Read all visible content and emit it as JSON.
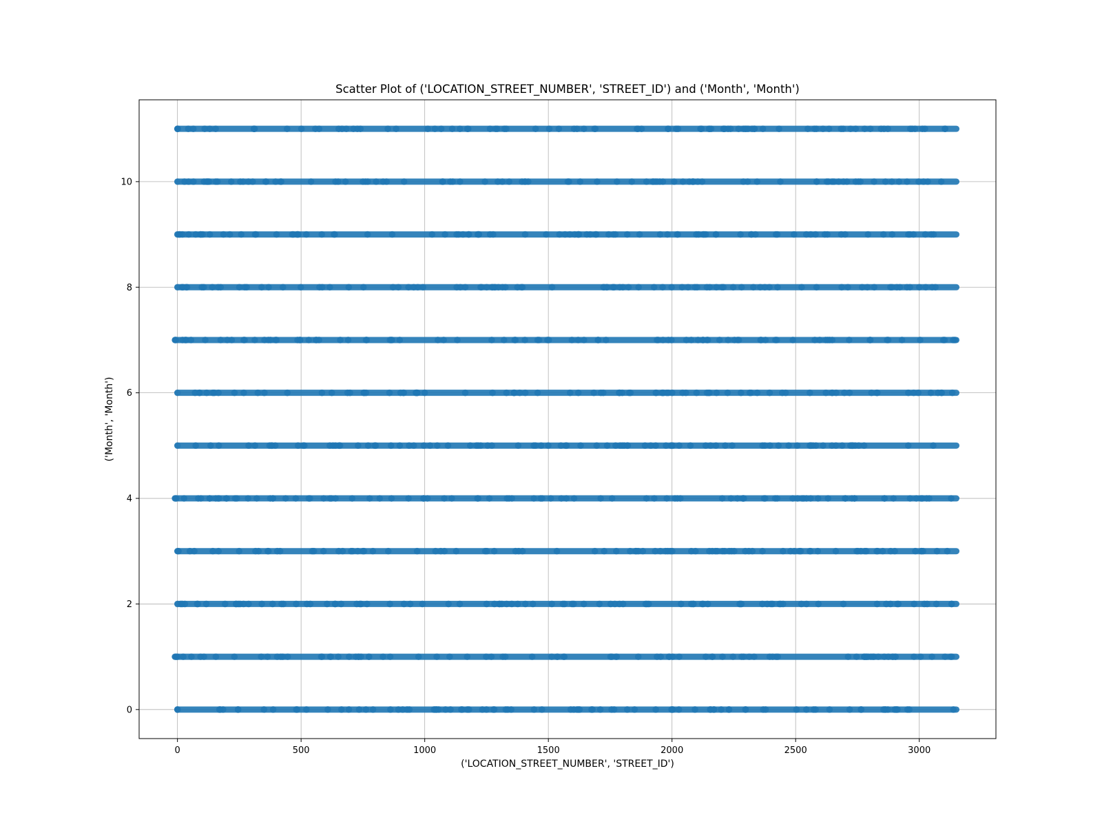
{
  "chart_data": {
    "type": "scatter",
    "title": "Scatter Plot of ('LOCATION_STREET_NUMBER', 'STREET_ID') and ('Month', 'Month')",
    "xlabel": "('LOCATION_STREET_NUMBER', 'STREET_ID')",
    "ylabel": "('Month', 'Month')",
    "xlim": [
      -155,
      3310
    ],
    "ylim": [
      -0.55,
      11.55
    ],
    "xticks": [
      0,
      500,
      1000,
      1500,
      2000,
      2500,
      3000
    ],
    "xtick_labels": [
      "0",
      "500",
      "1000",
      "1500",
      "2000",
      "2500",
      "3000"
    ],
    "yticks": [
      0,
      2,
      4,
      6,
      8,
      10
    ],
    "ytick_labels": [
      "0",
      "2",
      "4",
      "6",
      "8",
      "10"
    ],
    "grid": true,
    "marker_color": "#1f77b4",
    "series": [
      {
        "rows": [
          {
            "y": 0,
            "x_min": 0,
            "x_max": 3150
          },
          {
            "y": 1,
            "x_min": -10,
            "x_max": 3150
          },
          {
            "y": 2,
            "x_min": 0,
            "x_max": 3150
          },
          {
            "y": 3,
            "x_min": 0,
            "x_max": 3150
          },
          {
            "y": 4,
            "x_min": -10,
            "x_max": 3150
          },
          {
            "y": 5,
            "x_min": 0,
            "x_max": 3150
          },
          {
            "y": 6,
            "x_min": 0,
            "x_max": 3150
          },
          {
            "y": 7,
            "x_min": -10,
            "x_max": 3150
          },
          {
            "y": 8,
            "x_min": 0,
            "x_max": 3150
          },
          {
            "y": 9,
            "x_min": 0,
            "x_max": 3150
          },
          {
            "y": 10,
            "x_min": 0,
            "x_max": 3150
          },
          {
            "y": 11,
            "x_min": 0,
            "x_max": 3150
          }
        ]
      }
    ]
  }
}
